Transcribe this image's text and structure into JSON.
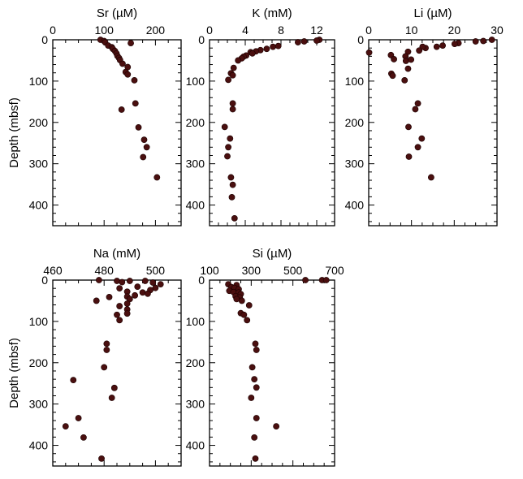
{
  "chart_data": [
    {
      "type": "scatter",
      "title": "Sr (µM)",
      "ylabel": "Depth (mbsf)",
      "xlim": [
        0,
        250
      ],
      "ylim": [
        0,
        450
      ],
      "xticks": [
        0,
        100,
        200
      ],
      "yticks": [
        0,
        100,
        200,
        300,
        400
      ],
      "points": [
        {
          "x": 93,
          "y": 0
        },
        {
          "x": 100,
          "y": 3
        },
        {
          "x": 102,
          "y": 6
        },
        {
          "x": 152,
          "y": 8
        },
        {
          "x": 108,
          "y": 14
        },
        {
          "x": 115,
          "y": 18
        },
        {
          "x": 117,
          "y": 22
        },
        {
          "x": 121,
          "y": 27
        },
        {
          "x": 124,
          "y": 33
        },
        {
          "x": 126,
          "y": 39
        },
        {
          "x": 129,
          "y": 44
        },
        {
          "x": 131,
          "y": 49
        },
        {
          "x": 136,
          "y": 58
        },
        {
          "x": 146,
          "y": 66
        },
        {
          "x": 142,
          "y": 78
        },
        {
          "x": 146,
          "y": 84
        },
        {
          "x": 159,
          "y": 98
        },
        {
          "x": 161,
          "y": 154
        },
        {
          "x": 134,
          "y": 169
        },
        {
          "x": 167,
          "y": 212
        },
        {
          "x": 178,
          "y": 242
        },
        {
          "x": 183,
          "y": 260
        },
        {
          "x": 176,
          "y": 284
        },
        {
          "x": 203,
          "y": 333
        }
      ]
    },
    {
      "type": "scatter",
      "title": "K (mM)",
      "xlim": [
        0,
        14
      ],
      "ylim": [
        0,
        450
      ],
      "xticks": [
        0,
        4,
        8,
        12
      ],
      "yticks": [
        0,
        100,
        200,
        300,
        400
      ],
      "points": [
        {
          "x": 12.3,
          "y": 0
        },
        {
          "x": 12.0,
          "y": 2
        },
        {
          "x": 10.6,
          "y": 4
        },
        {
          "x": 9.9,
          "y": 6
        },
        {
          "x": 7.7,
          "y": 15
        },
        {
          "x": 7.1,
          "y": 17
        },
        {
          "x": 6.4,
          "y": 22
        },
        {
          "x": 5.7,
          "y": 25
        },
        {
          "x": 5.2,
          "y": 28
        },
        {
          "x": 4.6,
          "y": 30
        },
        {
          "x": 4.8,
          "y": 33
        },
        {
          "x": 4.1,
          "y": 38
        },
        {
          "x": 3.8,
          "y": 41
        },
        {
          "x": 3.6,
          "y": 45
        },
        {
          "x": 3.2,
          "y": 50
        },
        {
          "x": 2.7,
          "y": 68
        },
        {
          "x": 2.4,
          "y": 81
        },
        {
          "x": 2.6,
          "y": 86
        },
        {
          "x": 2.1,
          "y": 97
        },
        {
          "x": 2.6,
          "y": 154
        },
        {
          "x": 2.6,
          "y": 168
        },
        {
          "x": 1.7,
          "y": 211
        },
        {
          "x": 2.3,
          "y": 239
        },
        {
          "x": 2.1,
          "y": 260
        },
        {
          "x": 2.0,
          "y": 282
        },
        {
          "x": 2.4,
          "y": 333
        },
        {
          "x": 2.6,
          "y": 351
        },
        {
          "x": 2.5,
          "y": 381
        },
        {
          "x": 2.8,
          "y": 432
        }
      ]
    },
    {
      "type": "scatter",
      "title": "Li (µM)",
      "xlim": [
        0,
        30
      ],
      "ylim": [
        0,
        450
      ],
      "xticks": [
        0,
        10,
        20,
        30
      ],
      "yticks": [
        0,
        100,
        200,
        300,
        400
      ],
      "points": [
        {
          "x": 28.8,
          "y": 0
        },
        {
          "x": 26.8,
          "y": 3
        },
        {
          "x": 25.0,
          "y": 4
        },
        {
          "x": 21.0,
          "y": 8
        },
        {
          "x": 20.1,
          "y": 10
        },
        {
          "x": 17.3,
          "y": 14
        },
        {
          "x": 15.9,
          "y": 17
        },
        {
          "x": 13.3,
          "y": 20
        },
        {
          "x": 12.6,
          "y": 17
        },
        {
          "x": 11.8,
          "y": 26
        },
        {
          "x": 0.1,
          "y": 31
        },
        {
          "x": 9.2,
          "y": 29
        },
        {
          "x": 5.2,
          "y": 37
        },
        {
          "x": 8.6,
          "y": 40
        },
        {
          "x": 5.9,
          "y": 47
        },
        {
          "x": 8.7,
          "y": 51
        },
        {
          "x": 9.9,
          "y": 48
        },
        {
          "x": 9.2,
          "y": 70
        },
        {
          "x": 5.3,
          "y": 82
        },
        {
          "x": 5.6,
          "y": 87
        },
        {
          "x": 8.4,
          "y": 98
        },
        {
          "x": 11.5,
          "y": 154
        },
        {
          "x": 10.9,
          "y": 168
        },
        {
          "x": 9.3,
          "y": 211
        },
        {
          "x": 12.4,
          "y": 239
        },
        {
          "x": 11.5,
          "y": 260
        },
        {
          "x": 9.4,
          "y": 283
        },
        {
          "x": 14.6,
          "y": 333
        }
      ]
    },
    {
      "type": "scatter",
      "title": "Na (mM)",
      "ylabel": "Depth (mbsf)",
      "xlim": [
        460,
        510
      ],
      "ylim": [
        0,
        450
      ],
      "xticks": [
        460,
        480,
        500
      ],
      "yticks": [
        0,
        100,
        200,
        300,
        400
      ],
      "points": [
        {
          "x": 478,
          "y": 0
        },
        {
          "x": 485,
          "y": 2
        },
        {
          "x": 487,
          "y": 5
        },
        {
          "x": 490,
          "y": 2
        },
        {
          "x": 496,
          "y": 2
        },
        {
          "x": 499,
          "y": 6
        },
        {
          "x": 502,
          "y": 10
        },
        {
          "x": 493,
          "y": 16
        },
        {
          "x": 500,
          "y": 19
        },
        {
          "x": 498,
          "y": 24
        },
        {
          "x": 486,
          "y": 20
        },
        {
          "x": 489,
          "y": 28
        },
        {
          "x": 495,
          "y": 30
        },
        {
          "x": 497,
          "y": 33
        },
        {
          "x": 492,
          "y": 37
        },
        {
          "x": 489,
          "y": 40
        },
        {
          "x": 482,
          "y": 41
        },
        {
          "x": 490,
          "y": 46
        },
        {
          "x": 477,
          "y": 50
        },
        {
          "x": 489,
          "y": 57
        },
        {
          "x": 486,
          "y": 63
        },
        {
          "x": 489,
          "y": 71
        },
        {
          "x": 489,
          "y": 81
        },
        {
          "x": 485,
          "y": 84
        },
        {
          "x": 486,
          "y": 97
        },
        {
          "x": 481,
          "y": 154
        },
        {
          "x": 481,
          "y": 169
        },
        {
          "x": 480,
          "y": 211
        },
        {
          "x": 468,
          "y": 242
        },
        {
          "x": 484,
          "y": 261
        },
        {
          "x": 483,
          "y": 285
        },
        {
          "x": 470,
          "y": 334
        },
        {
          "x": 465,
          "y": 354
        },
        {
          "x": 472,
          "y": 381
        },
        {
          "x": 479,
          "y": 432
        }
      ]
    },
    {
      "type": "scatter",
      "title": "Si (µM)",
      "xlim": [
        100,
        700
      ],
      "ylim": [
        0,
        450
      ],
      "xticks": [
        100,
        300,
        500,
        700
      ],
      "yticks": [
        0,
        100,
        200,
        300,
        400
      ],
      "points": [
        {
          "x": 560,
          "y": 0
        },
        {
          "x": 640,
          "y": 0
        },
        {
          "x": 660,
          "y": 0
        },
        {
          "x": 190,
          "y": 10
        },
        {
          "x": 230,
          "y": 12
        },
        {
          "x": 205,
          "y": 17
        },
        {
          "x": 220,
          "y": 19
        },
        {
          "x": 240,
          "y": 22
        },
        {
          "x": 195,
          "y": 26
        },
        {
          "x": 215,
          "y": 29
        },
        {
          "x": 240,
          "y": 30
        },
        {
          "x": 250,
          "y": 34
        },
        {
          "x": 225,
          "y": 39
        },
        {
          "x": 245,
          "y": 42
        },
        {
          "x": 230,
          "y": 46
        },
        {
          "x": 255,
          "y": 50
        },
        {
          "x": 290,
          "y": 61
        },
        {
          "x": 250,
          "y": 80
        },
        {
          "x": 265,
          "y": 84
        },
        {
          "x": 280,
          "y": 97
        },
        {
          "x": 320,
          "y": 154
        },
        {
          "x": 325,
          "y": 169
        },
        {
          "x": 305,
          "y": 211
        },
        {
          "x": 315,
          "y": 240
        },
        {
          "x": 325,
          "y": 260
        },
        {
          "x": 300,
          "y": 285
        },
        {
          "x": 325,
          "y": 334
        },
        {
          "x": 420,
          "y": 354
        },
        {
          "x": 315,
          "y": 381
        },
        {
          "x": 320,
          "y": 432
        }
      ]
    }
  ]
}
